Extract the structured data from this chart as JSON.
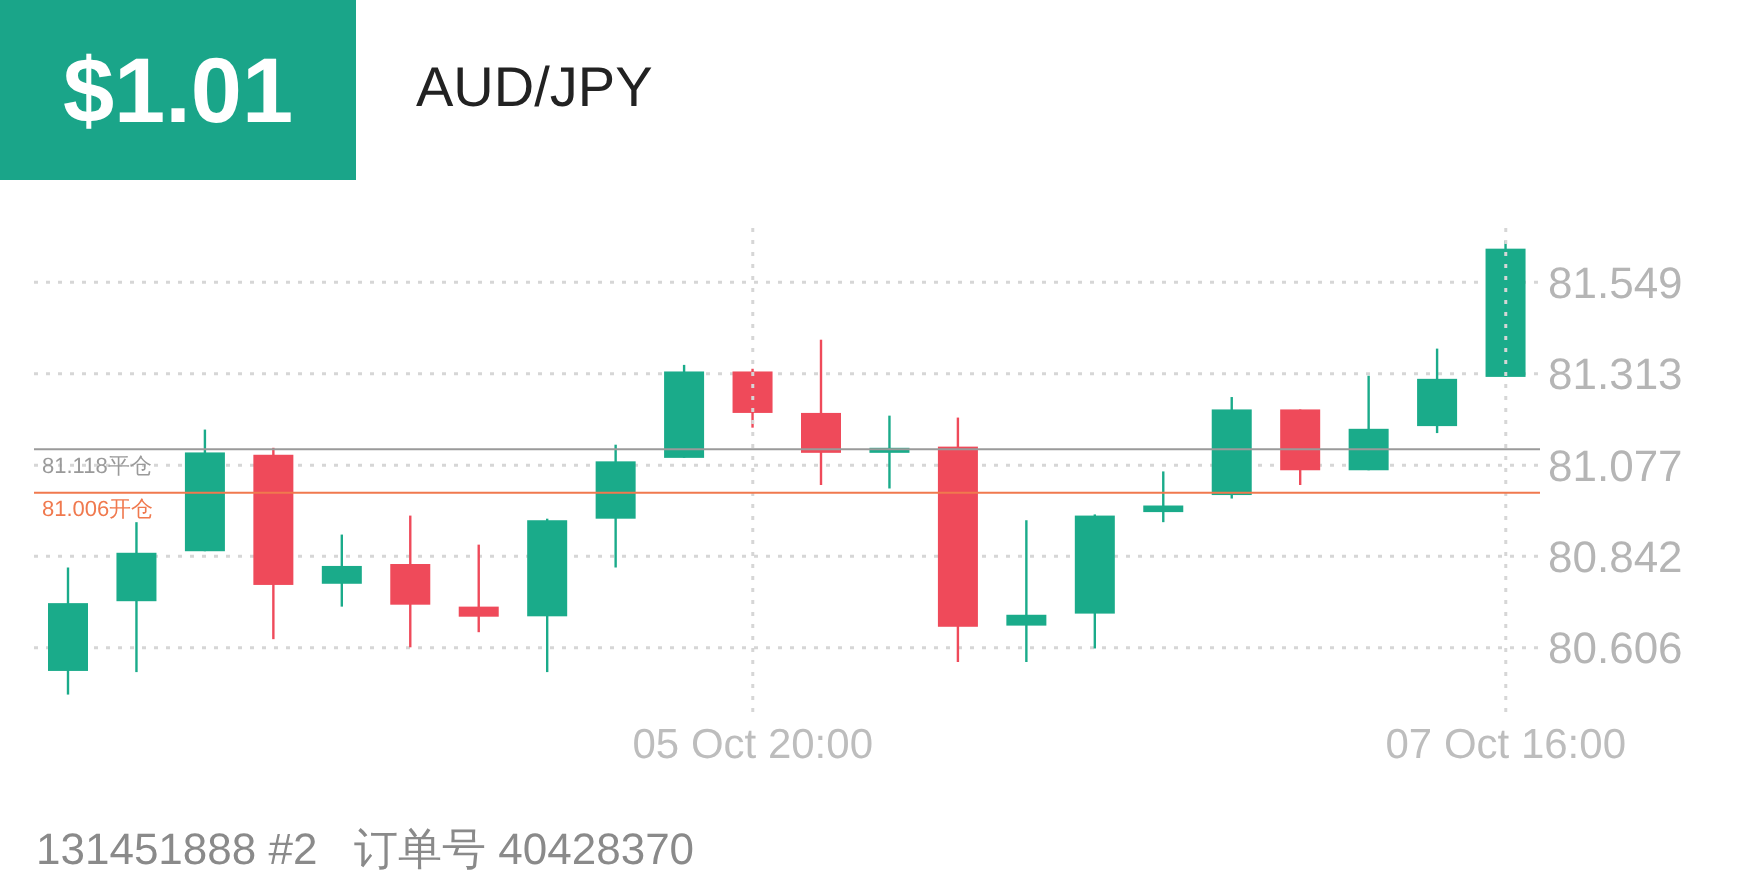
{
  "chart_data": {
    "type": "candlestick",
    "title": "AUD/JPY",
    "annotations": [
      "$1.01",
      "131451888 #2   订单号 40428370"
    ],
    "categories": [
      null,
      null,
      null,
      null,
      null,
      null,
      null,
      null,
      null,
      null,
      "05 Oct 20:00",
      null,
      null,
      null,
      null,
      null,
      null,
      null,
      null,
      null,
      null,
      "07 Oct 16:00"
    ],
    "ohlc": [
      [
        80.546,
        80.813,
        80.485,
        80.721
      ],
      [
        80.726,
        80.93,
        80.543,
        80.851
      ],
      [
        80.855,
        81.169,
        80.855,
        81.11
      ],
      [
        81.104,
        81.122,
        80.628,
        80.768
      ],
      [
        80.771,
        80.898,
        80.712,
        80.817
      ],
      [
        80.822,
        80.947,
        80.607,
        80.717
      ],
      [
        80.712,
        80.872,
        80.646,
        80.686
      ],
      [
        80.687,
        80.939,
        80.543,
        80.935
      ],
      [
        80.939,
        81.13,
        80.813,
        81.087
      ],
      [
        81.096,
        81.336,
        81.096,
        81.319
      ],
      [
        81.319,
        81.326,
        81.174,
        81.212
      ],
      [
        81.212,
        81.401,
        81.026,
        81.109
      ],
      [
        81.109,
        81.205,
        81.017,
        81.122
      ],
      [
        81.125,
        81.2,
        80.569,
        80.66
      ],
      [
        80.663,
        80.935,
        80.569,
        80.691
      ],
      [
        80.694,
        80.95,
        80.604,
        80.947
      ],
      [
        80.956,
        81.061,
        80.93,
        80.973
      ],
      [
        81.0,
        81.253,
        80.991,
        81.221
      ],
      [
        81.221,
        81.221,
        81.026,
        81.064
      ],
      [
        81.064,
        81.308,
        81.064,
        81.171
      ],
      [
        81.178,
        81.378,
        81.16,
        81.3
      ],
      [
        81.305,
        81.657,
        81.305,
        81.636
      ]
    ],
    "colors": [
      "#1aab8a",
      "#1aab8a",
      "#1aab8a",
      "#ef4a5a",
      "#1aab8a",
      "#ef4a5a",
      "#ef4a5a",
      "#1aab8a",
      "#1aab8a",
      "#1aab8a",
      "#ef4a5a",
      "#ef4a5a",
      "#1aab8a",
      "#ef4a5a",
      "#1aab8a",
      "#1aab8a",
      "#1aab8a",
      "#1aab8a",
      "#ef4a5a",
      "#1aab8a",
      "#1aab8a",
      "#1aab8a"
    ],
    "ylim": [
      80.44,
      81.71
    ],
    "yticks": [
      80.606,
      80.842,
      81.077,
      81.313,
      81.549
    ],
    "ref_lines": [
      {
        "axis": "y",
        "value": 81.118,
        "label": "81.118平仓",
        "color": "#9a9a9a"
      },
      {
        "axis": "y",
        "value": 81.006,
        "label": "81.006开仓",
        "color": "#f0794e"
      }
    ],
    "grid": true
  }
}
